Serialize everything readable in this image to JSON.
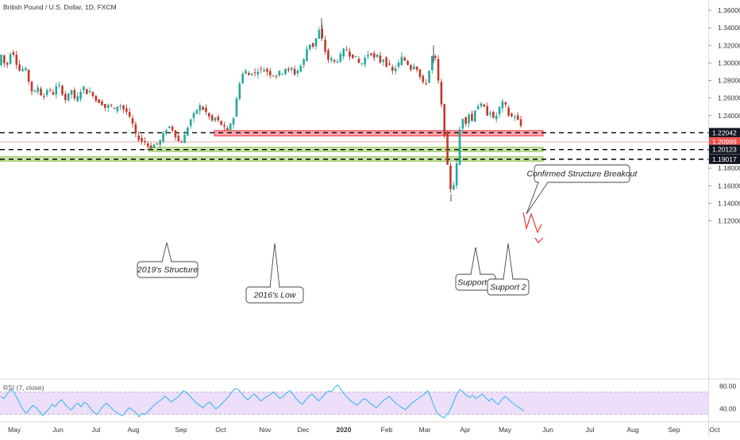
{
  "header": {
    "symbol_title": "British Pound / U.S. Dollar, 1D, FXCM"
  },
  "chart_data": {
    "type": "candlestick",
    "price_axis": {
      "ticks": [
        "1.36000",
        "1.34000",
        "1.32000",
        "1.30000",
        "1.28000",
        "1.26000",
        "1.24000",
        "1.22000",
        "1.20000",
        "1.18000",
        "1.16000",
        "1.14000",
        "1.12000"
      ],
      "range": [
        1.11,
        1.365
      ]
    },
    "time_axis": {
      "ticks": [
        "May",
        "Jun",
        "Jul",
        "Aug",
        "Sep",
        "Oct",
        "Nov",
        "Dec",
        "2020",
        "Feb",
        "Mar",
        "Apr",
        "May",
        "Jun",
        "Jul",
        "Aug",
        "Sep",
        "Oct"
      ],
      "bold_tick": "2020"
    },
    "price_labels": [
      {
        "value": 1.22042,
        "text": "1.22042",
        "style": "dark"
      },
      {
        "value": 1.20999,
        "text": "1.20999",
        "style": "red"
      },
      {
        "value": 1.20123,
        "text": "1.20123",
        "style": "dark"
      },
      {
        "value": 1.19017,
        "text": "1.19017",
        "style": "dark"
      }
    ],
    "zones": [
      {
        "name": "resistance-zone",
        "top": 1.2228,
        "bottom": 1.2168,
        "color": "#f23645"
      },
      {
        "name": "support-zone-1",
        "top": 1.2038,
        "bottom": 1.199,
        "color": "#8bc34a"
      },
      {
        "name": "support-zone-2",
        "top": 1.193,
        "bottom": 1.188,
        "color": "#8bc34a"
      }
    ],
    "annotations": [
      {
        "name": "callout-2019-structure",
        "text": "2019's Structure"
      },
      {
        "name": "callout-2016-low",
        "text": "2016's Low"
      },
      {
        "name": "callout-support-1",
        "text": "Support 1"
      },
      {
        "name": "callout-support-2",
        "text": "Support 2"
      },
      {
        "name": "callout-confirmed-breakout",
        "text": "Confirmed Structure Breakout"
      }
    ],
    "colors": {
      "up": "#26a69a",
      "down": "#c0392b",
      "rsi_line": "#29b6f6",
      "rsi_band": "#e9d6f7"
    },
    "path": [
      [
        0,
        1.3
      ],
      [
        4,
        1.312
      ],
      [
        8,
        1.295
      ],
      [
        12,
        1.3
      ],
      [
        16,
        1.318
      ],
      [
        20,
        1.306
      ],
      [
        24,
        1.295
      ],
      [
        28,
        1.288
      ],
      [
        32,
        1.298
      ],
      [
        36,
        1.285
      ],
      [
        40,
        1.272
      ],
      [
        44,
        1.262
      ],
      [
        48,
        1.275
      ],
      [
        52,
        1.266
      ],
      [
        56,
        1.259
      ],
      [
        60,
        1.27
      ],
      [
        64,
        1.268
      ],
      [
        68,
        1.264
      ],
      [
        72,
        1.272
      ],
      [
        76,
        1.274
      ],
      [
        80,
        1.266
      ],
      [
        84,
        1.258
      ],
      [
        88,
        1.264
      ],
      [
        92,
        1.27
      ],
      [
        96,
        1.256
      ],
      [
        100,
        1.262
      ],
      [
        104,
        1.27
      ],
      [
        108,
        1.272
      ],
      [
        112,
        1.264
      ],
      [
        116,
        1.268
      ],
      [
        120,
        1.262
      ],
      [
        124,
        1.254
      ],
      [
        128,
        1.257
      ],
      [
        132,
        1.25
      ],
      [
        136,
        1.248
      ],
      [
        140,
        1.255
      ],
      [
        144,
        1.244
      ],
      [
        148,
        1.25
      ],
      [
        152,
        1.253
      ],
      [
        156,
        1.248
      ],
      [
        160,
        1.246
      ],
      [
        164,
        1.238
      ],
      [
        168,
        1.232
      ],
      [
        172,
        1.218
      ],
      [
        176,
        1.214
      ],
      [
        180,
        1.211
      ],
      [
        184,
        1.21
      ],
      [
        188,
        1.205
      ],
      [
        192,
        1.204
      ],
      [
        196,
        1.207
      ],
      [
        200,
        1.208
      ],
      [
        204,
        1.212
      ],
      [
        208,
        1.22
      ],
      [
        212,
        1.226
      ],
      [
        216,
        1.228
      ],
      [
        220,
        1.222
      ],
      [
        224,
        1.214
      ],
      [
        228,
        1.208
      ],
      [
        232,
        1.212
      ],
      [
        236,
        1.222
      ],
      [
        240,
        1.233
      ],
      [
        244,
        1.239
      ],
      [
        248,
        1.244
      ],
      [
        252,
        1.252
      ],
      [
        256,
        1.248
      ],
      [
        260,
        1.245
      ],
      [
        264,
        1.24
      ],
      [
        268,
        1.233
      ],
      [
        272,
        1.238
      ],
      [
        276,
        1.234
      ],
      [
        280,
        1.23
      ],
      [
        284,
        1.226
      ],
      [
        288,
        1.222
      ],
      [
        292,
        1.232
      ],
      [
        296,
        1.238
      ],
      [
        300,
        1.262
      ],
      [
        304,
        1.281
      ],
      [
        308,
        1.289
      ],
      [
        312,
        1.291
      ],
      [
        316,
        1.284
      ],
      [
        320,
        1.292
      ],
      [
        324,
        1.286
      ],
      [
        328,
        1.296
      ],
      [
        332,
        1.289
      ],
      [
        336,
        1.296
      ],
      [
        340,
        1.285
      ],
      [
        344,
        1.29
      ],
      [
        348,
        1.282
      ],
      [
        352,
        1.291
      ],
      [
        356,
        1.286
      ],
      [
        360,
        1.296
      ],
      [
        364,
        1.289
      ],
      [
        368,
        1.295
      ],
      [
        372,
        1.287
      ],
      [
        376,
        1.291
      ],
      [
        380,
        1.296
      ],
      [
        384,
        1.303
      ],
      [
        388,
        1.316
      ],
      [
        392,
        1.322
      ],
      [
        396,
        1.319
      ],
      [
        400,
        1.329
      ],
      [
        404,
        1.338
      ],
      [
        408,
        1.325
      ],
      [
        412,
        1.31
      ],
      [
        416,
        1.302
      ],
      [
        420,
        1.305
      ],
      [
        424,
        1.299
      ],
      [
        428,
        1.306
      ],
      [
        432,
        1.31
      ],
      [
        436,
        1.318
      ],
      [
        440,
        1.312
      ],
      [
        444,
        1.306
      ],
      [
        448,
        1.309
      ],
      [
        452,
        1.301
      ],
      [
        456,
        1.298
      ],
      [
        460,
        1.304
      ],
      [
        464,
        1.309
      ],
      [
        468,
        1.313
      ],
      [
        472,
        1.304
      ],
      [
        476,
        1.309
      ],
      [
        480,
        1.301
      ],
      [
        484,
        1.305
      ],
      [
        488,
        1.298
      ],
      [
        492,
        1.296
      ],
      [
        496,
        1.29
      ],
      [
        500,
        1.295
      ],
      [
        504,
        1.3
      ],
      [
        508,
        1.307
      ],
      [
        512,
        1.302
      ],
      [
        516,
        1.298
      ],
      [
        520,
        1.292
      ],
      [
        524,
        1.3
      ],
      [
        528,
        1.29
      ],
      [
        532,
        1.28
      ],
      [
        536,
        1.274
      ],
      [
        540,
        1.282
      ],
      [
        544,
        1.3
      ],
      [
        548,
        1.315
      ],
      [
        552,
        1.29
      ],
      [
        556,
        1.262
      ],
      [
        560,
        1.232
      ],
      [
        564,
        1.192
      ],
      [
        568,
        1.157
      ],
      [
        572,
        1.158
      ],
      [
        576,
        1.176
      ],
      [
        580,
        1.222
      ],
      [
        584,
        1.238
      ],
      [
        588,
        1.232
      ],
      [
        592,
        1.242
      ],
      [
        596,
        1.234
      ],
      [
        600,
        1.248
      ],
      [
        604,
        1.252
      ],
      [
        608,
        1.252
      ],
      [
        612,
        1.248
      ],
      [
        616,
        1.24
      ],
      [
        620,
        1.246
      ],
      [
        624,
        1.232
      ],
      [
        628,
        1.244
      ],
      [
        632,
        1.252
      ],
      [
        636,
        1.256
      ],
      [
        640,
        1.247
      ],
      [
        644,
        1.235
      ],
      [
        648,
        1.242
      ],
      [
        652,
        1.236
      ],
      [
        656,
        1.232
      ],
      [
        660,
        1.222
      ]
    ],
    "rsi": {
      "label": "RSI (7, close)",
      "ticks": [
        "80.00",
        "40.00"
      ],
      "band": [
        30,
        70
      ],
      "values": [
        62,
        58,
        66,
        74,
        70,
        60,
        48,
        38,
        32,
        40,
        46,
        42,
        36,
        28,
        34,
        40,
        48,
        44,
        52,
        56,
        48,
        42,
        38,
        46,
        50,
        44,
        52,
        48,
        40,
        34,
        30,
        38,
        46,
        50,
        44,
        38,
        34,
        30,
        28,
        36,
        42,
        38,
        34,
        26,
        32,
        30,
        36,
        42,
        48,
        52,
        56,
        62,
        58,
        52,
        56,
        60,
        66,
        72,
        68,
        62,
        56,
        50,
        46,
        42,
        48,
        52,
        46,
        40,
        44,
        50,
        56,
        62,
        70,
        76,
        74,
        68,
        60,
        56,
        62,
        66,
        60,
        54,
        58,
        62,
        66,
        70,
        64,
        58,
        62,
        68,
        72,
        66,
        58,
        52,
        48,
        56,
        62,
        66,
        60,
        54,
        60,
        66,
        72,
        70,
        78,
        82,
        74,
        66,
        60,
        54,
        50,
        46,
        52,
        58,
        56,
        50,
        46,
        42,
        48,
        54,
        58,
        62,
        56,
        50,
        46,
        42,
        38,
        44,
        50,
        54,
        58,
        62,
        66,
        72,
        60,
        44,
        32,
        28,
        24,
        30,
        38,
        52,
        66,
        74,
        70,
        64,
        60,
        64,
        58,
        62,
        66,
        60,
        54,
        58,
        52,
        48,
        56,
        62,
        58,
        52,
        48,
        44,
        40,
        36
      ]
    }
  }
}
